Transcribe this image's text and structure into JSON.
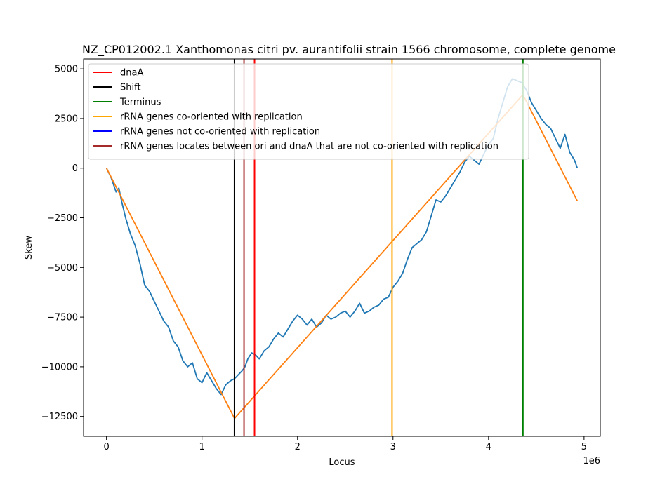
{
  "chart_data": {
    "type": "line",
    "title": "NZ_CP012002.1 Xanthomonas citri pv. aurantifolii strain 1566 chromosome, complete genome",
    "xlabel": "Locus",
    "ylabel": "Skew",
    "x_offset_label": "1e6",
    "xlim": [
      -240000,
      5170000
    ],
    "ylim": [
      -13500,
      5500
    ],
    "x_ticks": [
      0,
      1000000,
      2000000,
      3000000,
      4000000,
      5000000
    ],
    "x_tick_labels": [
      "0",
      "1",
      "2",
      "3",
      "4",
      "5"
    ],
    "y_ticks": [
      -12500,
      -10000,
      -7500,
      -5000,
      -2500,
      0,
      2500,
      5000
    ],
    "y_tick_labels": [
      "−12500",
      "−10000",
      "−7500",
      "−5000",
      "−2500",
      "0",
      "2500",
      "5000"
    ],
    "legend_position": "upper-left",
    "series": [
      {
        "color": "#1f77b4",
        "x": [
          0,
          50000,
          100000,
          130000,
          160000,
          200000,
          250000,
          300000,
          350000,
          400000,
          450000,
          500000,
          550000,
          600000,
          650000,
          700000,
          750000,
          800000,
          850000,
          900000,
          950000,
          1000000,
          1050000,
          1100000,
          1150000,
          1200000,
          1250000,
          1300000,
          1340000,
          1380000,
          1420000,
          1450000,
          1480000,
          1520000,
          1560000,
          1600000,
          1650000,
          1700000,
          1750000,
          1800000,
          1850000,
          1900000,
          1950000,
          2000000,
          2050000,
          2100000,
          2150000,
          2200000,
          2250000,
          2300000,
          2350000,
          2400000,
          2450000,
          2500000,
          2550000,
          2600000,
          2650000,
          2700000,
          2750000,
          2800000,
          2850000,
          2900000,
          2950000,
          3000000,
          3050000,
          3100000,
          3150000,
          3200000,
          3250000,
          3300000,
          3350000,
          3400000,
          3450000,
          3500000,
          3550000,
          3600000,
          3650000,
          3700000,
          3750000,
          3800000,
          3850000,
          3900000,
          3950000,
          4000000,
          4050000,
          4100000,
          4150000,
          4200000,
          4250000,
          4300000,
          4350000,
          4400000,
          4450000,
          4500000,
          4550000,
          4600000,
          4650000,
          4700000,
          4750000,
          4800000,
          4850000,
          4900000,
          4930000
        ],
        "y": [
          0,
          -500,
          -1200,
          -1000,
          -1700,
          -2500,
          -3300,
          -3900,
          -4800,
          -5900,
          -6200,
          -6700,
          -7200,
          -7700,
          -8000,
          -8700,
          -9000,
          -9700,
          -10000,
          -9800,
          -10600,
          -10800,
          -10300,
          -10700,
          -11100,
          -11400,
          -10900,
          -10700,
          -10600,
          -10400,
          -10200,
          -10000,
          -9600,
          -9300,
          -9400,
          -9600,
          -9200,
          -9000,
          -8600,
          -8300,
          -8500,
          -8100,
          -7700,
          -7400,
          -7600,
          -7900,
          -7600,
          -8000,
          -7800,
          -7400,
          -7600,
          -7500,
          -7300,
          -7200,
          -7500,
          -7200,
          -6800,
          -7300,
          -7200,
          -7000,
          -6900,
          -6600,
          -6500,
          -6000,
          -5700,
          -5300,
          -4600,
          -4000,
          -3800,
          -3600,
          -3200,
          -2400,
          -1600,
          -1700,
          -1400,
          -1000,
          -600,
          -200,
          300,
          600,
          400,
          200,
          700,
          1200,
          1500,
          2500,
          3300,
          4100,
          4500,
          4400,
          4300,
          3900,
          3300,
          2900,
          2500,
          2200,
          2000,
          1500,
          1000,
          1700,
          800,
          400,
          0
        ]
      },
      {
        "color": "#ff7f0e",
        "x": [
          0,
          1340000,
          4360000,
          4930000
        ],
        "y": [
          0,
          -12600,
          3700,
          -1650
        ]
      }
    ],
    "vertical_lines": [
      {
        "label": "Shift",
        "x": 1340000,
        "color": "#000000"
      },
      {
        "label": "rRNA genes locates between ori and dnaA that are not co-oriented with replication",
        "x": 1440000,
        "color": "#a52a2a"
      },
      {
        "label": "dnaA",
        "x": 1550000,
        "color": "#ff0000"
      },
      {
        "label": "rRNA genes co-oriented with replication",
        "x": 2990000,
        "color": "#ffa500"
      },
      {
        "label": "Terminus",
        "x": 4360000,
        "color": "#008000"
      }
    ],
    "legend": [
      {
        "label": "dnaA",
        "color": "#ff0000"
      },
      {
        "label": "Shift",
        "color": "#000000"
      },
      {
        "label": "Terminus",
        "color": "#008000"
      },
      {
        "label": "rRNA genes co-oriented with replication",
        "color": "#ffa500"
      },
      {
        "label": "rRNA genes not co-oriented with replication",
        "color": "#0000ff"
      },
      {
        "label": "rRNA genes locates between ori and dnaA that are not co-oriented with replication",
        "color": "#a52a2a"
      }
    ]
  }
}
